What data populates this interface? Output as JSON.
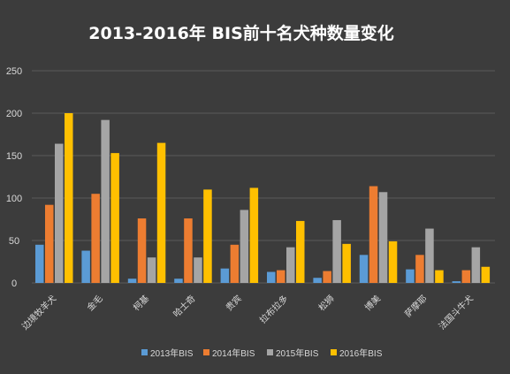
{
  "chart_data": {
    "type": "bar",
    "title": "2013-2016年 BIS前十名犬种数量变化",
    "xlabel": "",
    "ylabel": "",
    "ylim": [
      0,
      250
    ],
    "yticks": [
      0,
      50,
      100,
      150,
      200,
      250
    ],
    "grid": true,
    "legend_position": "bottom",
    "categories": [
      "边境牧羊犬",
      "金毛",
      "柯基",
      "哈士奇",
      "贵宾",
      "拉布拉多",
      "松狮",
      "博美",
      "萨摩耶",
      "法国斗牛犬"
    ],
    "series": [
      {
        "name": "2013年BIS",
        "color": "#5b9bd5",
        "values": [
          45,
          38,
          5,
          5,
          17,
          13,
          6,
          33,
          16,
          2
        ]
      },
      {
        "name": "2014年BIS",
        "color": "#ed7d31",
        "values": [
          92,
          105,
          76,
          76,
          45,
          15,
          14,
          114,
          33,
          15
        ]
      },
      {
        "name": "2015年BIS",
        "color": "#a5a5a5",
        "values": [
          164,
          192,
          30,
          30,
          86,
          42,
          74,
          107,
          64,
          42
        ]
      },
      {
        "name": "2016年BIS",
        "color": "#ffc000",
        "values": [
          200,
          153,
          165,
          110,
          112,
          73,
          46,
          49,
          15,
          19
        ]
      }
    ]
  },
  "colors": {
    "background": "#3c3c3c",
    "grid": "#5a5a5a",
    "text": "#d9d9d9"
  }
}
